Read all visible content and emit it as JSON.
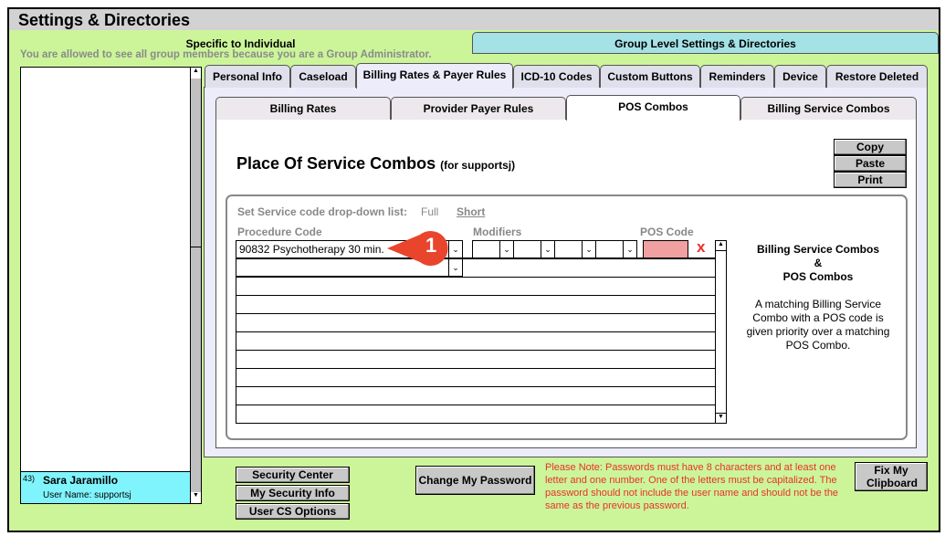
{
  "window": {
    "title": "Settings & Directories"
  },
  "top_tabs": [
    {
      "label": "Specific to Individual",
      "active": true
    },
    {
      "label": "Group Level Settings & Directories",
      "active": false
    }
  ],
  "admin_notice": "You are allowed to see all group members because you are a Group Administrator.",
  "members": [
    {
      "index": "43)",
      "name": "Sara Jaramillo",
      "username": "User Name: supportsj",
      "selected": true
    }
  ],
  "main_tabs": [
    "Personal Info",
    "Caseload",
    "Billing Rates & Payer Rules",
    "ICD-10 Codes",
    "Custom Buttons",
    "Reminders",
    "Device",
    "Restore Deleted"
  ],
  "main_tab_active": "Billing Rates & Payer Rules",
  "sub_tabs": [
    "Billing Rates",
    "Provider Payer Rules",
    "POS Combos",
    "Billing Service Combos"
  ],
  "sub_tab_active": "POS Combos",
  "section": {
    "title": "Place Of Service Combos",
    "subtitle": "(for supportsj)"
  },
  "actions": {
    "copy": "Copy",
    "paste": "Paste",
    "print": "Print"
  },
  "dropdown_list": {
    "label": "Set Service code drop-down list:",
    "full": "Full",
    "short": "Short"
  },
  "columns": {
    "procedure": "Procedure Code",
    "modifiers": "Modifiers",
    "pos": "POS Code"
  },
  "rows": [
    {
      "procedure": "90832 Psychotherapy 30 min.",
      "pos": "",
      "delete": "x"
    }
  ],
  "callout": {
    "number": "1",
    "color": "#e8452c"
  },
  "info": {
    "heading1": "Billing Service Combos",
    "amp": "&",
    "heading2": "POS Combos",
    "body": "A matching Billing Service Combo with a POS code is given priority over a matching POS Combo."
  },
  "bottom_buttons": {
    "security_center": "Security Center",
    "my_security_info": "My Security Info",
    "user_cs_options": "User CS Options",
    "change_password": "Change My Password",
    "fix_clipboard": "Fix My Clipboard"
  },
  "password_note": "Please Note: Passwords must have 8 characters and at least one letter and one number. One of the letters must be capitalized. The password should not include the user name and should not be the same as the previous password.",
  "colors": {
    "background": "#ccf59a",
    "group_tab": "#a4e2e6",
    "selected_member": "#80f4fc",
    "pos_empty": "#f0a0a0",
    "note": "#e8312a"
  }
}
